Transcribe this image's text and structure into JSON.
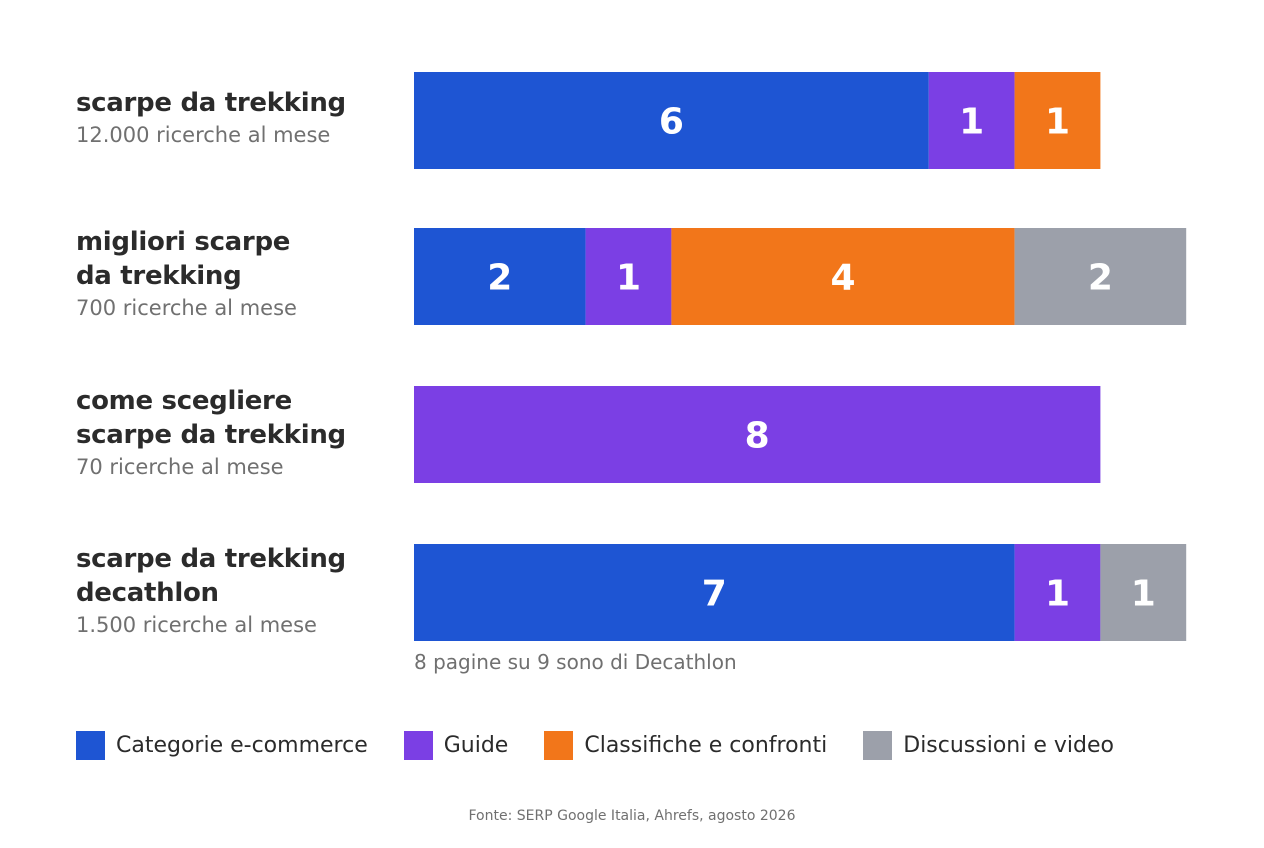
{
  "chart_data": {
    "type": "bar",
    "orientation": "horizontal",
    "stacked": true,
    "categories": [
      {
        "keyword": "scarpe da trekking",
        "volume": "12.000 ricerche al mese"
      },
      {
        "keyword": "migliori scarpe\nda trekking",
        "volume": "700 ricerche al mese"
      },
      {
        "keyword": "come scegliere\nscarpe da trekking",
        "volume": "70 ricerche al mese"
      },
      {
        "keyword": "scarpe da trekking\ndecathlon",
        "volume": "1.500 ricerche al mese"
      }
    ],
    "series": [
      {
        "name": "Categorie e-commerce",
        "color": "#1e55d3",
        "values": [
          6,
          2,
          0,
          7
        ]
      },
      {
        "name": "Guide",
        "color": "#7b3fe4",
        "values": [
          1,
          1,
          8,
          1
        ]
      },
      {
        "name": "Classifiche e confronti",
        "color": "#f2761a",
        "values": [
          1,
          4,
          0,
          0
        ]
      },
      {
        "name": "Discussioni e video",
        "color": "#9ca0aa",
        "values": [
          0,
          2,
          0,
          1
        ]
      }
    ],
    "xlim": [
      0,
      9
    ],
    "grid": false,
    "legend_position": "bottom",
    "annotations": [
      "8 pagine su 9 sono di Decathlon"
    ],
    "source": "Fonte: SERP Google Italia, Ahrefs, agosto 2026"
  }
}
